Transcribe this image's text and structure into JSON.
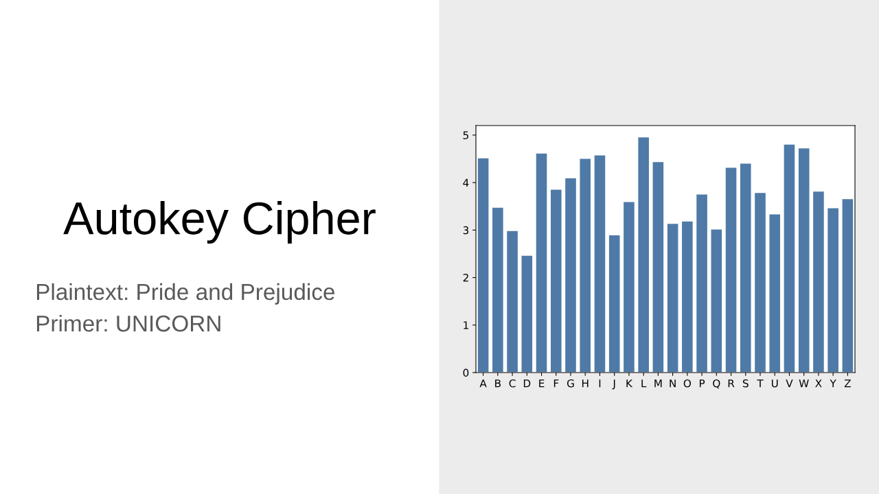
{
  "chart_data": {
    "type": "bar",
    "title": "Autokey Cipher",
    "annotations": [
      "Plaintext: Pride and Prejudice",
      "Primer: UNICORN"
    ],
    "categories": [
      "A",
      "B",
      "C",
      "D",
      "E",
      "F",
      "G",
      "H",
      "I",
      "J",
      "K",
      "L",
      "M",
      "N",
      "O",
      "P",
      "Q",
      "R",
      "S",
      "T",
      "U",
      "V",
      "W",
      "X",
      "Y",
      "Z"
    ],
    "values": [
      4.52,
      3.48,
      2.99,
      2.47,
      4.62,
      3.86,
      4.1,
      4.51,
      4.58,
      2.9,
      3.6,
      4.96,
      4.44,
      3.14,
      3.19,
      3.76,
      3.02,
      4.32,
      4.41,
      3.79,
      3.34,
      4.81,
      4.73,
      3.82,
      3.47,
      3.66
    ],
    "color": "#4f7aa7",
    "ylim": [
      0,
      5.2
    ],
    "yticks": [
      0,
      1,
      2,
      3,
      4,
      5
    ],
    "grid": false
  }
}
